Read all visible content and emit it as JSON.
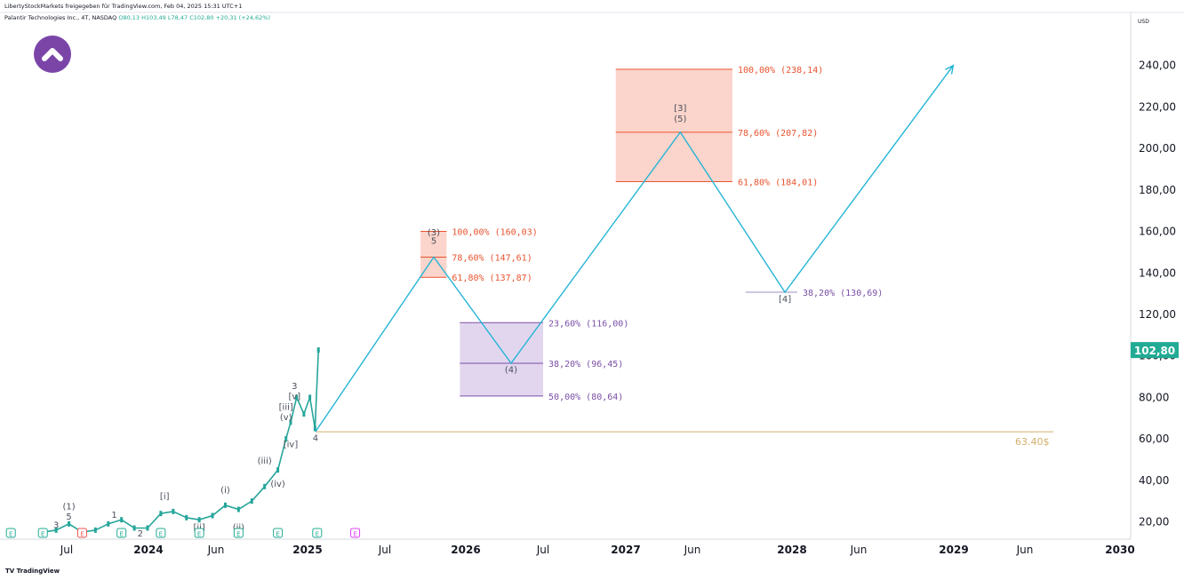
{
  "header": {
    "publisher_line": "LibertyStockMarkets freigegeben für TradingView.com, Feb 04, 2025 15:31 UTC+1",
    "symbol": "Palantir Technologies Inc., 4T, NASDAQ",
    "ohlc": {
      "o": "O80,13",
      "h": "H103,49",
      "l": "L78,47",
      "c": "C102,80",
      "chg": "+20,31 (+24,62%)"
    }
  },
  "currency": "USD",
  "footer": {
    "brand": "TradingView"
  },
  "colors": {
    "cyan": "#26b5d6",
    "red": "#e8532f",
    "purple": "#7a4fa6",
    "green": "#22ab94",
    "candle_down": "#ef5350",
    "gold": "#d4ae6a"
  },
  "chart_data": {
    "type": "line",
    "y_axis": {
      "ticks": [
        "20,00",
        "40,00",
        "60,00",
        "80,00",
        "100,00",
        "120,00",
        "140,00",
        "160,00",
        "180,00",
        "200,00",
        "220,00",
        "240,00"
      ],
      "range": [
        13,
        250
      ]
    },
    "x_axis": {
      "labels": [
        "Jul",
        "2024",
        "Jun",
        "2025",
        "Jul",
        "2026",
        "Jul",
        "2027",
        "Jun",
        "2028",
        "Jun",
        "2029",
        "Jun",
        "2030"
      ]
    },
    "last_price": "102,80",
    "support_line": {
      "value": 63.4,
      "label": "63.40$"
    },
    "history": [
      [
        "2023-05-01",
        15
      ],
      [
        "2023-06-01",
        16
      ],
      [
        "2023-07-01",
        19
      ],
      [
        "2023-08-01",
        15
      ],
      [
        "2023-09-01",
        16
      ],
      [
        "2023-10-01",
        19
      ],
      [
        "2023-11-01",
        21
      ],
      [
        "2023-12-01",
        17
      ],
      [
        "2024-01-01",
        17
      ],
      [
        "2024-02-01",
        24
      ],
      [
        "2024-03-01",
        25
      ],
      [
        "2024-04-01",
        22
      ],
      [
        "2024-05-01",
        21
      ],
      [
        "2024-06-01",
        23
      ],
      [
        "2024-07-01",
        28
      ],
      [
        "2024-08-01",
        26
      ],
      [
        "2024-09-01",
        30
      ],
      [
        "2024-10-01",
        37
      ],
      [
        "2024-11-01",
        45
      ],
      [
        "2024-11-20",
        60
      ],
      [
        "2024-12-01",
        68
      ],
      [
        "2024-12-15",
        80
      ],
      [
        "2025-01-01",
        72
      ],
      [
        "2025-01-15",
        80
      ],
      [
        "2025-01-27",
        65
      ],
      [
        "2025-02-04",
        102.8
      ]
    ],
    "projection": [
      [
        "2025-01-28",
        63.4
      ],
      [
        "2025-11-01",
        147.61
      ],
      [
        "2026-05-01",
        96.45
      ],
      [
        "2027-06-01",
        207.82
      ],
      [
        "2028-02-01",
        130.69
      ],
      [
        "2029-03-01",
        240
      ]
    ],
    "zones": [
      {
        "kind": "red",
        "x0": "2025-10-01",
        "x1": "2025-12-01",
        "levels": [
          {
            "value": 160.03,
            "label": "100,00% (160,03)"
          },
          {
            "value": 147.61,
            "label": "78,60% (147,61)"
          },
          {
            "value": 137.87,
            "label": "61,80% (137,87)"
          }
        ]
      },
      {
        "kind": "purple",
        "x0": "2026-01-01",
        "x1": "2026-07-15",
        "levels": [
          {
            "value": 116.0,
            "label": "23,60% (116,00)"
          },
          {
            "value": 96.45,
            "label": "38,20% (96,45)"
          },
          {
            "value": 80.64,
            "label": "50,00% (80,64)"
          }
        ]
      },
      {
        "kind": "red",
        "x0": "2027-01-01",
        "x1": "2027-10-01",
        "levels": [
          {
            "value": 238.14,
            "label": "100,00% (238,14)"
          },
          {
            "value": 207.82,
            "label": "78,60% (207,82)"
          },
          {
            "value": 184.01,
            "label": "61,80% (184,01)"
          }
        ]
      },
      {
        "kind": "line",
        "x0": "2027-11-01",
        "x1": "2028-03-01",
        "levels": [
          {
            "value": 130.69,
            "label": "38,20% (130,69)"
          }
        ]
      }
    ],
    "wave_labels": [
      {
        "text": "(3)",
        "x": "2025-11-01",
        "y": 158
      },
      {
        "text": "5",
        "x": "2025-11-01",
        "y": 154
      },
      {
        "text": "(4)",
        "x": "2026-05-01",
        "y": 92
      },
      {
        "text": "[3]",
        "x": "2027-06-01",
        "y": 218
      },
      {
        "text": "(5)",
        "x": "2027-06-01",
        "y": 213
      },
      {
        "text": "[4]",
        "x": "2028-02-01",
        "y": 126
      },
      {
        "text": "4",
        "x": "2025-01-28",
        "y": 59
      },
      {
        "text": "3",
        "x": "2024-12-10",
        "y": 84
      },
      {
        "text": "[v]",
        "x": "2024-12-10",
        "y": 79
      },
      {
        "text": "[iii]",
        "x": "2024-11-20",
        "y": 74
      },
      {
        "text": "(v)",
        "x": "2024-11-20",
        "y": 69
      },
      {
        "text": "[iv]",
        "x": "2024-12-01",
        "y": 56
      },
      {
        "text": "(iii)",
        "x": "2024-10-01",
        "y": 48
      },
      {
        "text": "(iv)",
        "x": "2024-11-01",
        "y": 37
      },
      {
        "text": "(i)",
        "x": "2024-07-01",
        "y": 34
      },
      {
        "text": "(ii)",
        "x": "2024-08-01",
        "y": 16
      },
      {
        "text": "[i]",
        "x": "2024-02-10",
        "y": 31
      },
      {
        "text": "[ii]",
        "x": "2024-05-01",
        "y": 16
      },
      {
        "text": "(1)",
        "x": "2023-07-01",
        "y": 26
      },
      {
        "text": "5",
        "x": "2023-07-01",
        "y": 21
      },
      {
        "text": "3",
        "x": "2023-06-01",
        "y": 17
      },
      {
        "text": "1",
        "x": "2023-10-15",
        "y": 22
      },
      {
        "text": "2",
        "x": "2023-12-15",
        "y": 13
      }
    ],
    "event_markers": [
      {
        "text": "E",
        "x": "2023-02-15",
        "color": "#22ab94"
      },
      {
        "text": "E",
        "x": "2023-05-01",
        "color": "#22ab94"
      },
      {
        "text": "E",
        "x": "2023-08-01",
        "color": "#ef5350"
      },
      {
        "text": "E",
        "x": "2023-11-01",
        "color": "#22ab94"
      },
      {
        "text": "E",
        "x": "2024-02-01",
        "color": "#22ab94"
      },
      {
        "text": "E",
        "x": "2024-05-01",
        "color": "#22ab94"
      },
      {
        "text": "E",
        "x": "2024-08-01",
        "color": "#22ab94"
      },
      {
        "text": "E",
        "x": "2024-11-01",
        "color": "#22ab94"
      },
      {
        "text": "E",
        "x": "2025-02-01",
        "color": "#22ab94"
      },
      {
        "text": "E",
        "x": "2025-05-01",
        "color": "#e040fb"
      }
    ]
  }
}
